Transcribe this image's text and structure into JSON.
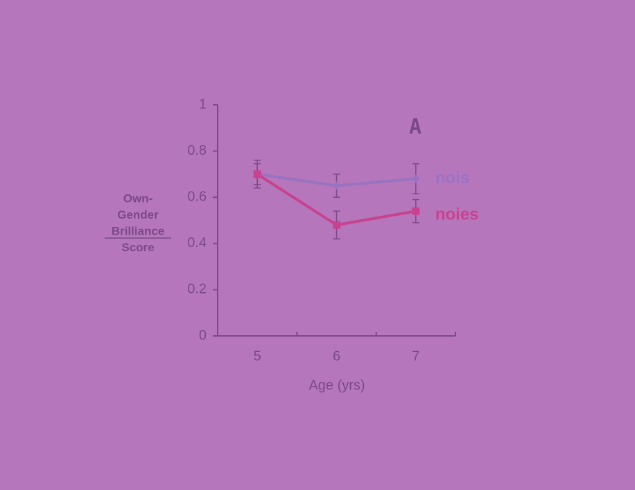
{
  "chart_data": {
    "type": "line",
    "annotation": "A",
    "x_label": "Age (yrs)",
    "y_label_lines": [
      "Own-",
      "Gender",
      "Brilliance",
      "Score"
    ],
    "categories": [
      "5",
      "6",
      "7"
    ],
    "series": [
      {
        "name": "nois",
        "color": "#9a72c2",
        "values": [
          0.7,
          0.65,
          0.68
        ],
        "errors": [
          0.06,
          0.05,
          0.065
        ]
      },
      {
        "name": "noies",
        "color": "#c8428e",
        "values": [
          0.7,
          0.48,
          0.54
        ],
        "errors": [
          0.045,
          0.06,
          0.05
        ]
      }
    ],
    "ylim": [
      0,
      1
    ],
    "yticks": [
      0,
      0.2,
      0.4,
      0.6,
      0.8,
      1
    ]
  }
}
